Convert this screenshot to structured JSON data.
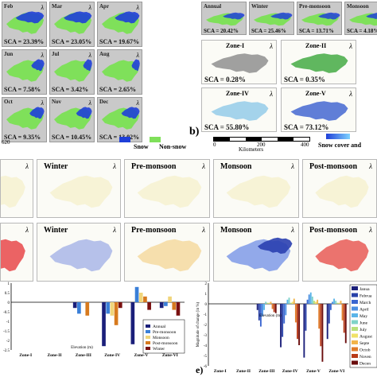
{
  "section_a": {
    "months": [
      {
        "title": "Feb",
        "sca": "SCA = 23.39%"
      },
      {
        "title": "Mar",
        "sca": "SCA = 23.05%"
      },
      {
        "title": "Apr",
        "sca": "SCA = 19.67%"
      },
      {
        "title": "Jun",
        "sca": "SCA = 7.58%"
      },
      {
        "title": "Jul",
        "sca": "SCA = 3.42%"
      },
      {
        "title": "Aug",
        "sca": "SCA = 2.65%"
      },
      {
        "title": "Oct",
        "sca": "SCA = 9.35%"
      },
      {
        "title": "Nov",
        "sca": "SCA = 10.45%"
      },
      {
        "title": "Dec",
        "sca": "SCA = 13.02%"
      }
    ],
    "scale_value": "620",
    "legend_snow": "Snow",
    "legend_nonsnow": "Non-snow",
    "colors": {
      "snow": "#1f3fd8",
      "nonsnow": "#7fe05a"
    }
  },
  "section_b": {
    "label": "b)",
    "seasons": [
      {
        "title": "Annual",
        "sca": "SCA = 20.42%"
      },
      {
        "title": "Winter",
        "sca": "SCA = 25.46%"
      },
      {
        "title": "Pre-monsoon",
        "sca": "SCA = 13.71%"
      },
      {
        "title": "Monsoon",
        "sca": "SCA = 4.18%"
      }
    ],
    "zones": [
      {
        "title": "Zone-I",
        "sca": "SCA = 0.28%"
      },
      {
        "title": "Zone-II",
        "sca": "SCA = 0.35%"
      },
      {
        "title": "Zone-IV",
        "sca": "SCA = 55.80%"
      },
      {
        "title": "Zone-V",
        "sca": "SCA = 73.12%"
      }
    ],
    "axis_ticks": [
      "0",
      "200",
      "400"
    ],
    "axis_label": "Kilometers",
    "legend": "Snow cover and"
  },
  "section_c": {
    "rows": [
      {
        "titles": [
          "",
          "Winter",
          "Pre-monsoon",
          "Monsoon",
          "Post-monsoon"
        ]
      },
      {
        "titles": [
          "",
          "Winter",
          "Pre-monsoon",
          "Monsoon",
          "Post-monsoon"
        ]
      }
    ]
  },
  "section_d": {
    "chart_data": {
      "type": "bar",
      "categories": [
        "Zone-I",
        "Zone-II",
        "Zone-III",
        "Zone-IV",
        "Zone-V",
        "Zone-VI"
      ],
      "xlabel": "Elevation (m)",
      "ylabel": "",
      "ylim": [
        -2.5,
        1
      ],
      "yticks": [
        "1",
        "0.5",
        "0",
        "-0.5",
        "-1",
        "-1.5",
        "-2",
        "-2.5"
      ],
      "series": [
        {
          "name": "Annual",
          "color": "#1b1f7a",
          "values": [
            0,
            0,
            -0.3,
            -2.3,
            -2.2,
            -0.3
          ]
        },
        {
          "name": "Pre-monsoon",
          "color": "#3a7fd8",
          "values": [
            0,
            0,
            -0.6,
            -0.6,
            0.8,
            -0.2
          ]
        },
        {
          "name": "Monsoon",
          "color": "#f0d57a",
          "values": [
            0,
            0,
            0,
            -0.7,
            0.5,
            0.3
          ]
        },
        {
          "name": "Post-monsoon",
          "color": "#d77a1e",
          "values": [
            0,
            0,
            -0.7,
            -1.2,
            0.3,
            -0.4
          ]
        },
        {
          "name": "Winter",
          "color": "#7a1010",
          "values": [
            0,
            0,
            0,
            -0.3,
            -0.4,
            -0.7
          ]
        }
      ]
    }
  },
  "section_e": {
    "label": "e)",
    "chart_data": {
      "type": "bar",
      "categories": [
        "Zone-I",
        "Zone-II",
        "Zone-III",
        "Zone-IV",
        "Zone-V",
        "Zone-VI"
      ],
      "xlabel": "Elevation (m)",
      "ylabel": "Magnitude of change (in %)",
      "yticks": [
        "2",
        "1",
        "0",
        "-1",
        "-2",
        "-3",
        "-4",
        "-5",
        "-6"
      ],
      "ylim": [
        -6,
        2
      ],
      "series": [
        {
          "name": "Janua",
          "color": "#1b1f7a"
        },
        {
          "name": "Februa",
          "color": "#2740a8"
        },
        {
          "name": "March",
          "color": "#3a66d0"
        },
        {
          "name": "April",
          "color": "#4b8fe2"
        },
        {
          "name": "May",
          "color": "#5ab4e8"
        },
        {
          "name": "June",
          "color": "#7fd3c8"
        },
        {
          "name": "July",
          "color": "#b8e07a"
        },
        {
          "name": "August",
          "color": "#f0e268"
        },
        {
          "name": "Septe",
          "color": "#f2b44a"
        },
        {
          "name": "Octob",
          "color": "#e07a28"
        },
        {
          "name": "Noven",
          "color": "#b83a18"
        },
        {
          "name": "Decen",
          "color": "#6a0c0c"
        }
      ],
      "values": [
        [
          0,
          0,
          0,
          0,
          0,
          0,
          0,
          0,
          0,
          0,
          0,
          0
        ],
        [
          0,
          0,
          0,
          0,
          0,
          0,
          0,
          0,
          0,
          0,
          0,
          0
        ],
        [
          -0.6,
          -1.6,
          -2.2,
          -1.2,
          -0.6,
          0.2,
          0.1,
          0.1,
          0.2,
          -0.5,
          -0.8,
          -0.9
        ],
        [
          -4.2,
          -3.2,
          -1.9,
          -1.1,
          0.4,
          0.6,
          0.1,
          0.2,
          0.5,
          -1.8,
          -3.4,
          -4.0
        ],
        [
          -5.2,
          -2.6,
          0.4,
          0.9,
          1.1,
          0.7,
          0.3,
          0.2,
          0.4,
          -2.4,
          -4.1,
          -5.6
        ],
        [
          -3.4,
          -1.9,
          -0.6,
          0.2,
          0.5,
          0.3,
          0.1,
          0.1,
          0.3,
          -1.6,
          -2.8,
          -3.8
        ]
      ]
    }
  }
}
